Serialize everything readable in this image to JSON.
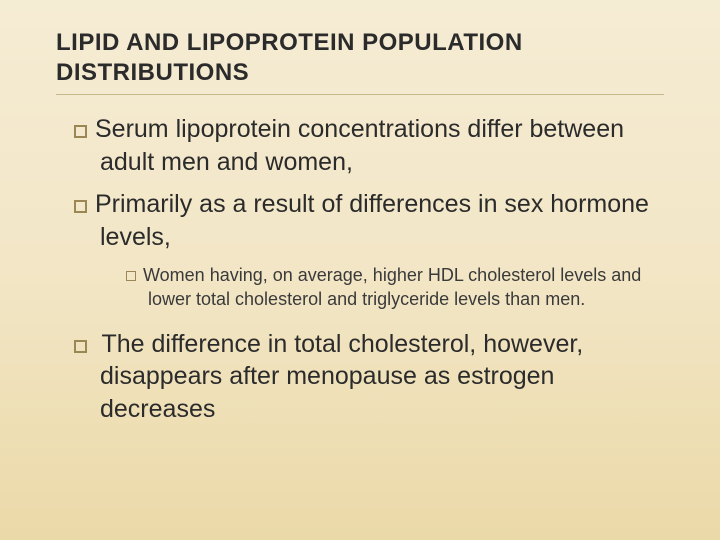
{
  "colors": {
    "background_top": "#f5ecd4",
    "background_mid": "#f2e6c6",
    "background_bottom": "#ebd9a8",
    "title_text": "#2b2b2b",
    "body_text": "#2b2b2b",
    "sub_text": "#3a3a3a",
    "bullet_border": "#9a8754",
    "divider": "#c9b88a"
  },
  "typography": {
    "title_fontsize": 24,
    "title_weight": "bold",
    "level1_fontsize": 25,
    "level2_fontsize": 18,
    "font_family": "Arial"
  },
  "title": "LIPID AND LIPOPROTEIN POPULATION DISTRIBUTIONS",
  "bullets": {
    "item1": "Serum lipoprotein concentrations differ between adult men and women,",
    "item2": "Primarily as a result of differences in sex hormone levels,",
    "sub1": "Women having, on average, higher HDL cholesterol levels and lower total cholesterol and triglyceride levels than men.",
    "item3": " The difference in total cholesterol, however, disappears after menopause as estrogen decreases"
  }
}
